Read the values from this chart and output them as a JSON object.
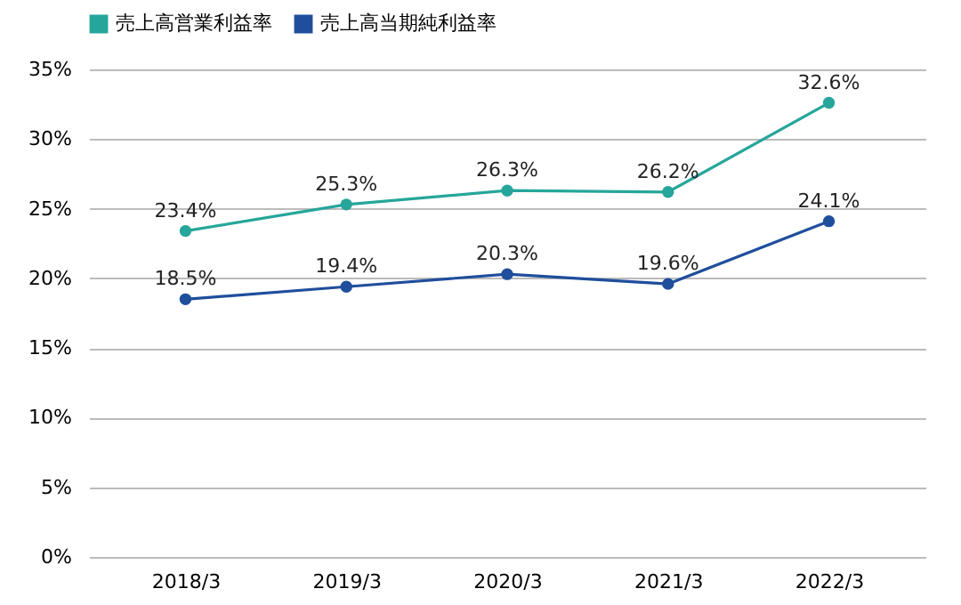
{
  "chart_data": {
    "type": "line",
    "categories": [
      "2018/3",
      "2019/3",
      "2020/3",
      "2021/3",
      "2022/3"
    ],
    "series": [
      {
        "name": "売上高営業利益率",
        "color": "#26a69a",
        "values": [
          23.4,
          25.3,
          26.3,
          26.2,
          32.6
        ],
        "value_labels": [
          "23.4%",
          "25.3%",
          "26.3%",
          "26.2%",
          "32.6%"
        ]
      },
      {
        "name": "売上高当期純利益率",
        "color": "#1f4e9c",
        "values": [
          18.5,
          19.4,
          20.3,
          19.6,
          24.1
        ],
        "value_labels": [
          "18.5%",
          "19.4%",
          "20.3%",
          "19.6%",
          "24.1%"
        ]
      }
    ],
    "ylim": [
      0,
      35
    ],
    "yticks": [
      {
        "value": 0,
        "label": "0%"
      },
      {
        "value": 5,
        "label": "5%"
      },
      {
        "value": 10,
        "label": "10%"
      },
      {
        "value": 15,
        "label": "15%"
      },
      {
        "value": 20,
        "label": "20%"
      },
      {
        "value": 25,
        "label": "25%"
      },
      {
        "value": 30,
        "label": "30%"
      },
      {
        "value": 35,
        "label": "35%"
      }
    ],
    "grid": "y",
    "legend": "top",
    "marker": "circle",
    "line_style": "solid"
  }
}
